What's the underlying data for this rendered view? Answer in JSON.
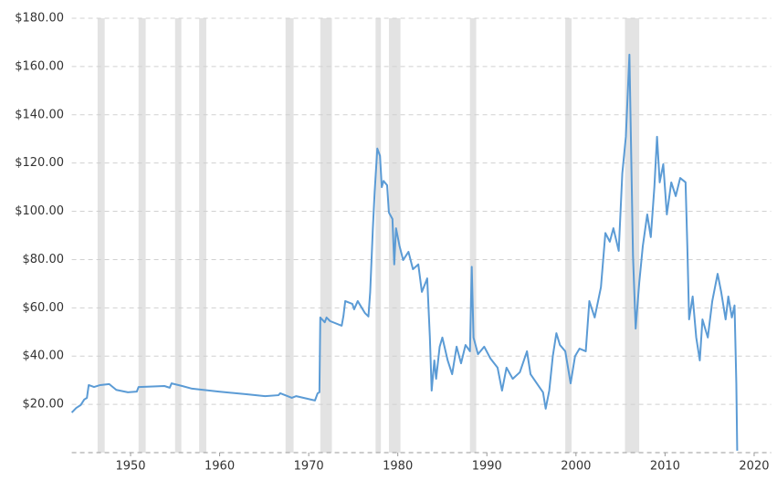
{
  "chart_data": {
    "type": "line",
    "xlim": [
      1943.4,
      2021.9
    ],
    "xticks": [
      1950,
      1960,
      1970,
      1980,
      1990,
      2000,
      2010,
      2020
    ],
    "ylim": [
      0,
      180
    ],
    "yticks": [
      {
        "value": 20,
        "label": "$20.00"
      },
      {
        "value": 40,
        "label": "$40.00"
      },
      {
        "value": 60,
        "label": "$60.00"
      },
      {
        "value": 80,
        "label": "$80.00"
      },
      {
        "value": 100,
        "label": "$100.00"
      },
      {
        "value": 120,
        "label": "$120.00"
      },
      {
        "value": 140,
        "label": "$140.00"
      },
      {
        "value": 160,
        "label": "$160.00"
      },
      {
        "value": 180,
        "label": "$180.00"
      }
    ],
    "grid": true,
    "band_color": "#e3e3e3",
    "bands": [
      {
        "start": 1946.3,
        "end": 1947.1
      },
      {
        "start": 1950.9,
        "end": 1951.7
      },
      {
        "start": 1955.0,
        "end": 1955.7
      },
      {
        "start": 1957.7,
        "end": 1958.5
      },
      {
        "start": 1967.4,
        "end": 1968.3
      },
      {
        "start": 1971.3,
        "end": 1972.6
      },
      {
        "start": 1977.5,
        "end": 1978.1
      },
      {
        "start": 1979.0,
        "end": 1980.3
      },
      {
        "start": 1988.1,
        "end": 1988.8
      },
      {
        "start": 1998.8,
        "end": 1999.5
      },
      {
        "start": 2005.5,
        "end": 2007.1
      }
    ],
    "series": [
      {
        "color": "#5b9bd5",
        "x": [
          1943.4,
          1943.9,
          1944.4,
          1944.8,
          1945.1,
          1945.3,
          1945.9,
          1946.6,
          1947.6,
          1948.4,
          1949.7,
          1950.7,
          1950.9,
          1953.8,
          1954.4,
          1954.6,
          1955.8,
          1956.9,
          1959.9,
          1963.0,
          1965.1,
          1966.6,
          1966.8,
          1968.1,
          1968.6,
          1970.7,
          1971.0,
          1971.2,
          1971.3,
          1971.8,
          1972.0,
          1972.4,
          1973.7,
          1973.9,
          1974.1,
          1974.9,
          1975.1,
          1975.5,
          1976.3,
          1976.7,
          1976.9,
          1977.2,
          1977.4,
          1977.7,
          1978.0,
          1978.2,
          1978.4,
          1978.8,
          1979.0,
          1979.4,
          1979.6,
          1979.8,
          1980.2,
          1980.6,
          1981.2,
          1981.7,
          1982.3,
          1982.7,
          1983.1,
          1983.3,
          1983.6,
          1983.8,
          1984.1,
          1984.3,
          1984.7,
          1985.0,
          1985.6,
          1986.1,
          1986.6,
          1987.1,
          1987.6,
          1988.1,
          1988.3,
          1988.5,
          1989.0,
          1989.7,
          1990.4,
          1991.2,
          1991.7,
          1992.2,
          1992.9,
          1993.7,
          1994.5,
          1994.9,
          1995.6,
          1996.3,
          1996.6,
          1997.0,
          1997.4,
          1997.8,
          1998.2,
          1998.8,
          1999.4,
          1999.9,
          2000.4,
          2001.1,
          2001.5,
          2002.1,
          2002.8,
          2003.3,
          2003.8,
          2004.2,
          2004.8,
          2005.2,
          2005.6,
          2006.0,
          2006.4,
          2006.7,
          2007.1,
          2007.5,
          2008.0,
          2008.4,
          2008.8,
          2009.1,
          2009.4,
          2009.8,
          2010.2,
          2010.7,
          2011.2,
          2011.7,
          2012.3,
          2012.5,
          2012.7,
          2013.1,
          2013.5,
          2013.9,
          2014.2,
          2014.8,
          2015.3,
          2015.9,
          2016.3,
          2016.8,
          2017.1,
          2017.5,
          2017.8,
          2018.0,
          2018.1
        ],
        "values": [
          16.6,
          18.5,
          19.7,
          22,
          22.7,
          28,
          27.2,
          28,
          28.4,
          26,
          25,
          25.3,
          27.2,
          27.6,
          26.9,
          28.7,
          27.6,
          26.5,
          25.3,
          24.2,
          23.4,
          23.8,
          24.6,
          22.7,
          23.4,
          21.6,
          24.6,
          25,
          56,
          54,
          56,
          54.5,
          52.6,
          56.7,
          62.8,
          61.6,
          59.4,
          62.8,
          57.9,
          56.4,
          66.6,
          93,
          108,
          126,
          123,
          110,
          112.6,
          110.8,
          99.5,
          96.8,
          78,
          93,
          85.5,
          79.8,
          83.2,
          76,
          78,
          66.6,
          70.3,
          72.2,
          47.7,
          25.7,
          38.2,
          30.6,
          43.9,
          47.7,
          38.2,
          32.5,
          43.9,
          37,
          44.6,
          42,
          77,
          47.7,
          40.8,
          43.9,
          39,
          35.2,
          25.7,
          35.2,
          30.6,
          33.3,
          42,
          32.5,
          28.7,
          25,
          18.2,
          25.7,
          40,
          49.5,
          44.6,
          42,
          28.7,
          40,
          43.1,
          42,
          62.8,
          56,
          68.5,
          91,
          87.4,
          93,
          83.6,
          115.7,
          130.9,
          164.9,
          81.7,
          51.4,
          70.3,
          85.5,
          98.7,
          89.3,
          110,
          130.9,
          112,
          119.5,
          98.7,
          112,
          106.3,
          113.8,
          112,
          85.5,
          55.2,
          64.7,
          47.7,
          38.2,
          55.2,
          47.7,
          62.8,
          74.1,
          66.6,
          55.2,
          64.7,
          56,
          61,
          28.7,
          0.8
        ]
      }
    ]
  }
}
